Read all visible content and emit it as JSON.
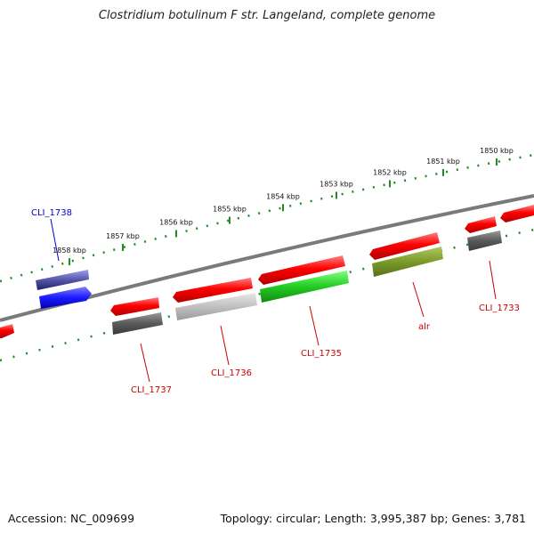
{
  "title": "Clostridium botulinum F str. Langeland, complete genome",
  "footer": {
    "accession": "Accession: NC_009699",
    "stats": "Topology: circular; Length: 3,995,387 bp; Genes: 3,781"
  },
  "ticks": [
    {
      "label": "1850 kbp",
      "kbp": 1850
    },
    {
      "label": "1851 kbp",
      "kbp": 1851
    },
    {
      "label": "1852 kbp",
      "kbp": 1852
    },
    {
      "label": "1853 kbp",
      "kbp": 1853
    },
    {
      "label": "1854 kbp",
      "kbp": 1854
    },
    {
      "label": "1855 kbp",
      "kbp": 1855
    },
    {
      "label": "1856 kbp",
      "kbp": 1856
    },
    {
      "label": "1857 kbp",
      "kbp": 1857
    },
    {
      "label": "1858 kbp",
      "kbp": 1858
    }
  ],
  "gene_labels": [
    {
      "name": "CLI_1733",
      "color": "#cc0000"
    },
    {
      "name": "alr",
      "color": "#cc0000"
    },
    {
      "name": "CLI_1735",
      "color": "#cc0000"
    },
    {
      "name": "CLI_1736",
      "color": "#cc0000"
    },
    {
      "name": "CLI_1737",
      "color": "#cc0000"
    },
    {
      "name": "CLI_1738",
      "color": "#0000cc"
    }
  ],
  "colors": {
    "forward": "#ff0000",
    "reverse_ring": "#808080",
    "tick": "#228b22",
    "gc_skew": "#555555",
    "cli_1735": "#22cc22",
    "alr": "#7a9a2a",
    "cli_1736": "#c0c0c0",
    "cli_1738": "#1a1aff",
    "cli_1738_ring": "#7777cc"
  }
}
